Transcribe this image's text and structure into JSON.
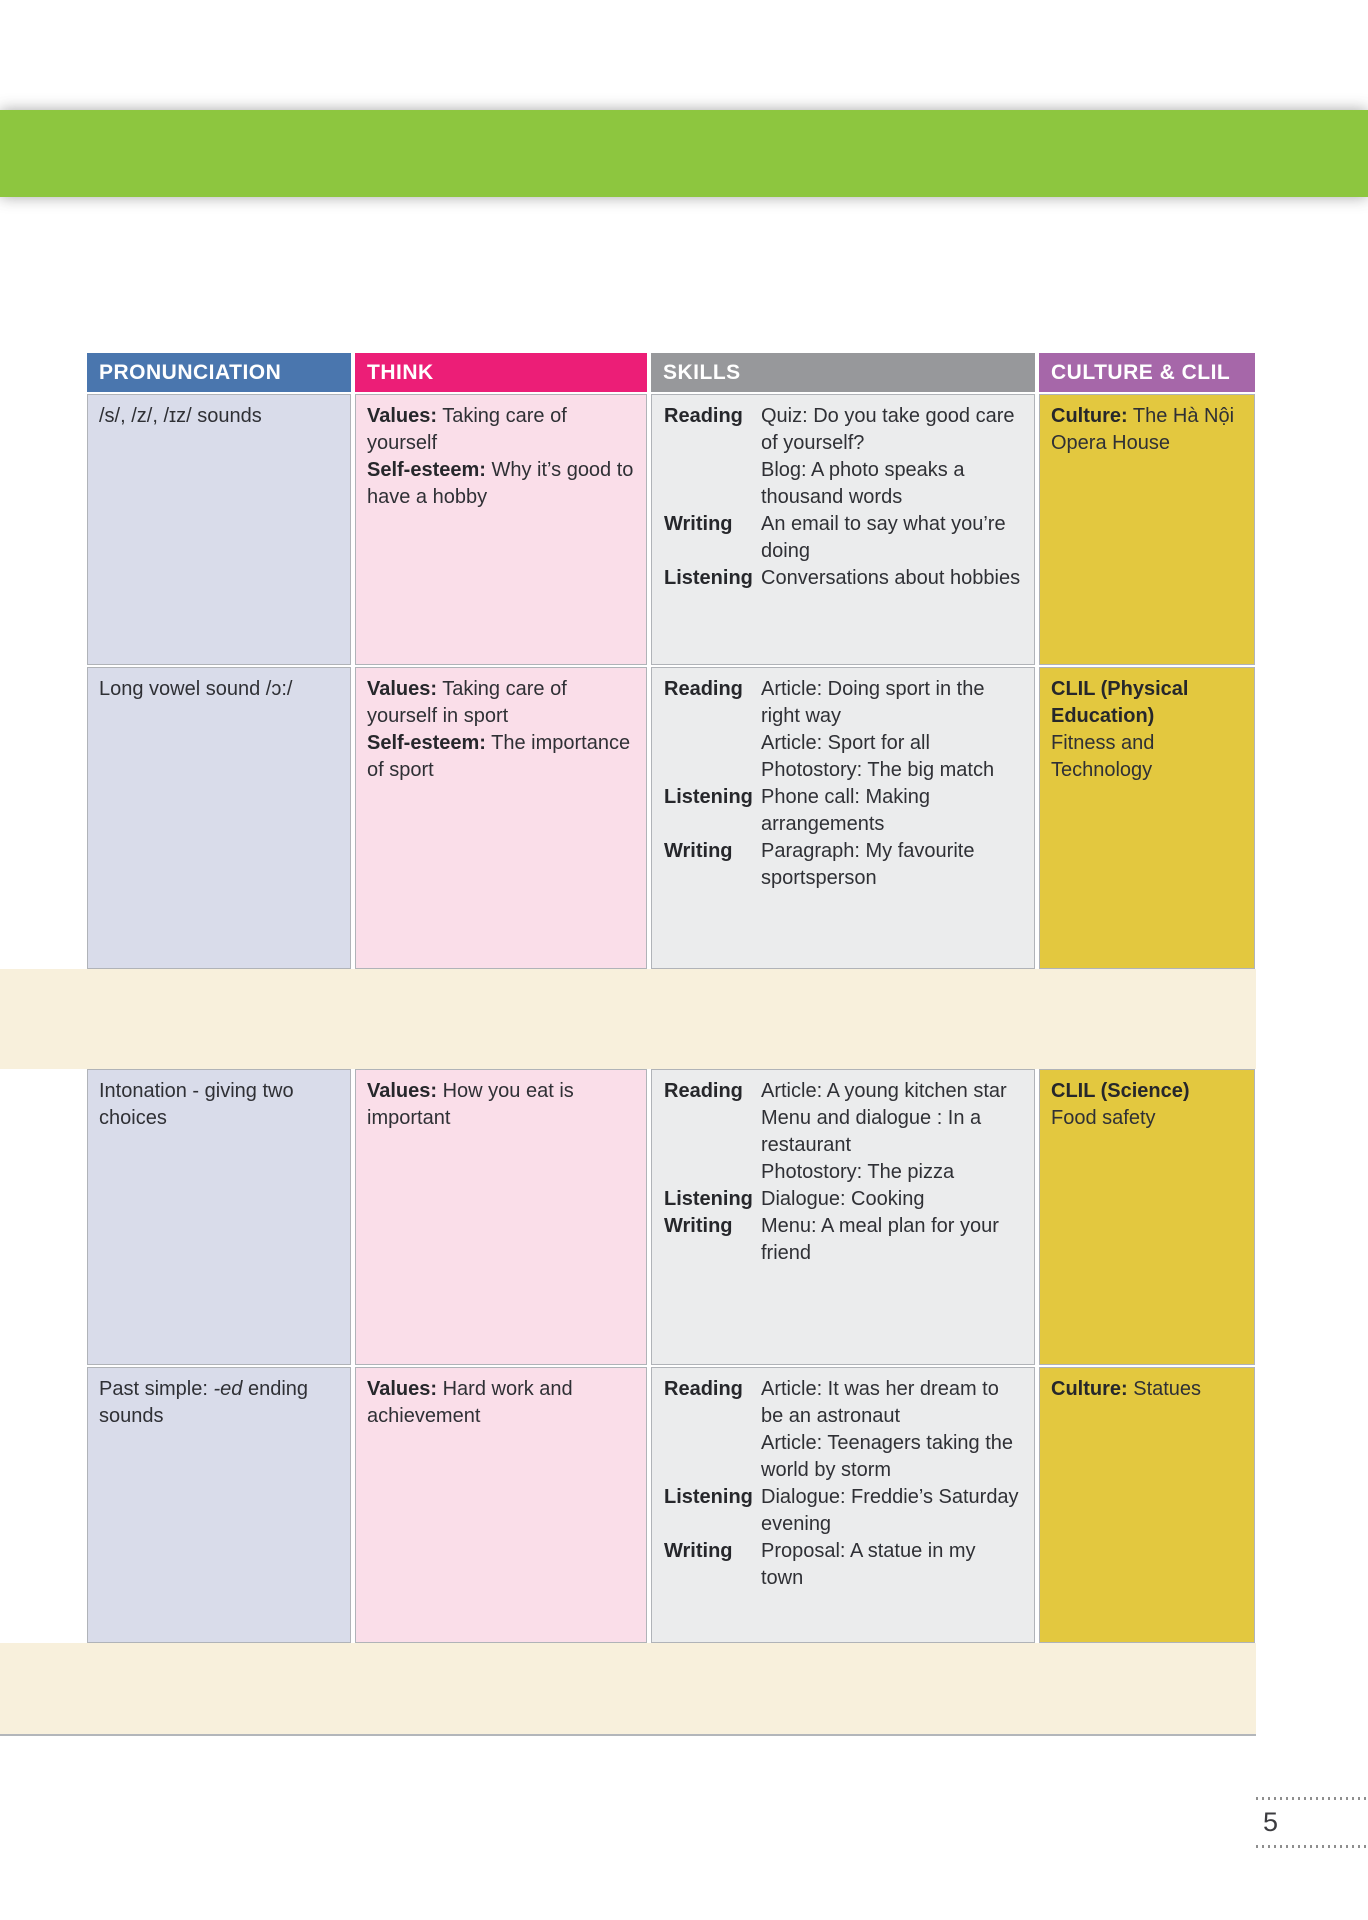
{
  "page": {
    "number": "5"
  },
  "colors": {
    "header_band_green": "#8dc63f",
    "header_pronunciation": "#4a76ae",
    "header_think": "#ec1e77",
    "header_skills": "#97989b",
    "header_culture_clil": "#a667a9",
    "cell_pronunciation_bg": "#d9dcea",
    "cell_think_bg": "#fadee9",
    "cell_skills_bg": "#ebeced",
    "cell_culture_bg": "#e3c83f",
    "review_band_bg": "#f8f0dc"
  },
  "table": {
    "headers": [
      {
        "label": "PRONUNCIATION"
      },
      {
        "label": "THINK"
      },
      {
        "label": "SKILLS"
      },
      {
        "label": "CULTURE & CLIL"
      }
    ],
    "rows": [
      {
        "pronunciation": [
          {
            "t": "/s/, /z/, /ɪz/ sounds"
          }
        ],
        "think": [
          {
            "b": "Values:",
            "t": " Taking care of yourself"
          },
          {
            "b": "Self-esteem:",
            "t": " Why it’s good to have a hobby"
          }
        ],
        "skills": [
          {
            "label": "Reading",
            "items": [
              "Quiz: Do you take good care of yourself?",
              "Blog: A photo speaks a thousand words"
            ]
          },
          {
            "label": "Writing",
            "items": [
              "An email to say what you’re doing"
            ]
          },
          {
            "label": "Listening",
            "items": [
              "Conversations about hobbies"
            ]
          }
        ],
        "culture": {
          "bold": "Culture:",
          "rest": " The Hà Nội Opera House",
          "block": false
        }
      },
      {
        "pronunciation": [
          {
            "t": "Long vowel sound /ɔ:/"
          }
        ],
        "think": [
          {
            "b": "Values:",
            "t": " Taking care of yourself in sport"
          },
          {
            "b": "Self-esteem:",
            "t": " The importance of sport"
          }
        ],
        "skills": [
          {
            "label": "Reading",
            "items": [
              "Article: Doing sport in the right way",
              "Article: Sport for all",
              "Photostory: The big match"
            ]
          },
          {
            "label": "Listening",
            "items": [
              "Phone call: Making arrangements"
            ]
          },
          {
            "label": "Writing",
            "items": [
              "Paragraph: My favourite sportsperson"
            ]
          }
        ],
        "culture": {
          "bold": "CLIL (Physical Education)",
          "rest": "Fitness and Technology",
          "block": true
        }
      },
      {
        "pronunciation": [
          {
            "t": "Intonation - giving two choices"
          }
        ],
        "think": [
          {
            "b": "Values:",
            "t": " How you eat is important"
          }
        ],
        "skills": [
          {
            "label": "Reading",
            "items": [
              "Article: A young kitchen star",
              "Menu and dialogue : In a restaurant",
              "Photostory: The pizza"
            ]
          },
          {
            "label": "Listening",
            "items": [
              "Dialogue: Cooking"
            ]
          },
          {
            "label": "Writing",
            "items": [
              "Menu: A meal plan for your friend"
            ]
          }
        ],
        "culture": {
          "bold": "CLIL (Science)",
          "rest": "Food safety",
          "block": true
        }
      },
      {
        "pronunciation": [
          {
            "t": "Past simple: "
          },
          {
            "t": "-ed",
            "i": true
          },
          {
            "t": " ending sounds"
          }
        ],
        "think": [
          {
            "b": "Values:",
            "t": " Hard work and achievement"
          }
        ],
        "skills": [
          {
            "label": "Reading",
            "items": [
              "Article: It was her dream to be an astronaut",
              "Article: Teenagers taking the world by storm"
            ]
          },
          {
            "label": "Listening",
            "items": [
              "Dialogue: Freddie’s Saturday evening"
            ]
          },
          {
            "label": "Writing",
            "items": [
              "Proposal: A statue in my town"
            ]
          }
        ],
        "culture": {
          "bold": "Culture:",
          "rest": " Statues",
          "block": false
        }
      }
    ]
  }
}
